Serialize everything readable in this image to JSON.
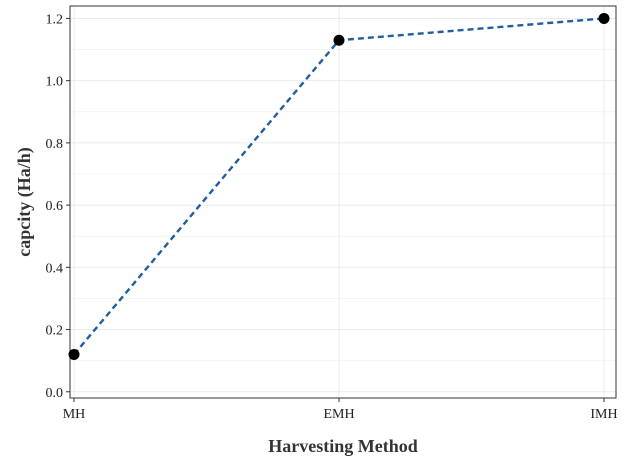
{
  "chart_data": {
    "type": "line",
    "title": "",
    "xlabel": "Harvesting Method",
    "ylabel": "capcity (Ha/h)",
    "categories": [
      "MH",
      "EMH",
      "IMH"
    ],
    "series": [
      {
        "values": [
          0.12,
          1.13,
          1.2
        ]
      }
    ],
    "ylim": [
      -0.02,
      1.24
    ],
    "yticks": [
      "0.0",
      "0.2",
      "0.4",
      "0.6",
      "0.8",
      "1.0",
      "1.2"
    ],
    "grid": true,
    "legend": "none",
    "line_style": "dashed",
    "colors": {
      "line": "#1f5fa0",
      "marker": "#000000",
      "grid": "#ebebeb",
      "panel_border": "#333333"
    }
  }
}
